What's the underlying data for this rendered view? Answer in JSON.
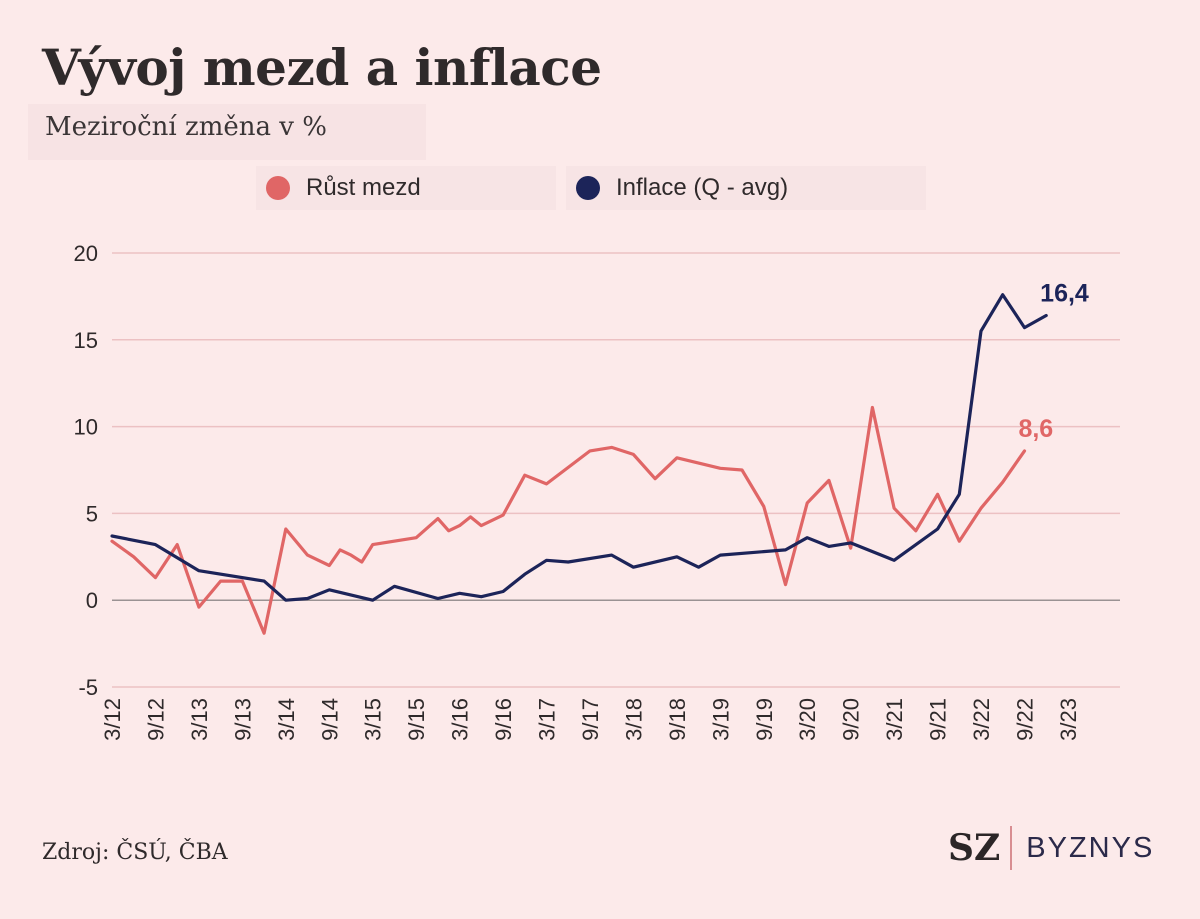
{
  "header": {
    "title": "Vývoj mezd a inflace",
    "subtitle": "Meziroční změna v %"
  },
  "footer": {
    "source": "Zdroj: ČSÚ, ČBA",
    "brand_mark": "SZ",
    "brand_name": "BYZNYS"
  },
  "chart_data": {
    "type": "line",
    "title": "Vývoj mezd a inflace",
    "subtitle": "Meziroční změna v %",
    "xlabel": "",
    "ylabel": "",
    "ylim": [
      -5,
      20
    ],
    "yticks": [
      "20",
      "15",
      "10",
      "5",
      "0",
      "-5"
    ],
    "ytick_values": [
      20,
      15,
      10,
      5,
      0,
      -5
    ],
    "grid": true,
    "legend_placement": "top",
    "x_tick_labels": [
      "3/12",
      "9/12",
      "3/13",
      "9/13",
      "3/14",
      "9/14",
      "3/15",
      "9/15",
      "3/16",
      "9/16",
      "3/17",
      "9/17",
      "3/18",
      "9/18",
      "3/19",
      "9/19",
      "3/20",
      "9/20",
      "3/21",
      "9/21",
      "3/22",
      "9/22",
      "3/23"
    ],
    "series": [
      {
        "name": "Růst mezd",
        "color": "#e06666",
        "end_label": "8,6",
        "points": [
          {
            "x": 0,
            "y": 3.4
          },
          {
            "x": 0.5,
            "y": 2.5
          },
          {
            "x": 1,
            "y": 1.3
          },
          {
            "x": 1.5,
            "y": 3.2
          },
          {
            "x": 2,
            "y": -0.4
          },
          {
            "x": 2.5,
            "y": 1.1
          },
          {
            "x": 3,
            "y": 1.1
          },
          {
            "x": 3.5,
            "y": -1.9
          },
          {
            "x": 4,
            "y": 4.1
          },
          {
            "x": 4.5,
            "y": 2.6
          },
          {
            "x": 5,
            "y": 2.0
          },
          {
            "x": 5.25,
            "y": 2.9
          },
          {
            "x": 5.5,
            "y": 2.6
          },
          {
            "x": 5.75,
            "y": 2.2
          },
          {
            "x": 6,
            "y": 3.2
          },
          {
            "x": 7,
            "y": 3.6
          },
          {
            "x": 7.5,
            "y": 4.7
          },
          {
            "x": 7.75,
            "y": 4.0
          },
          {
            "x": 8,
            "y": 4.3
          },
          {
            "x": 8.25,
            "y": 4.8
          },
          {
            "x": 8.5,
            "y": 4.3
          },
          {
            "x": 9,
            "y": 4.9
          },
          {
            "x": 9.5,
            "y": 7.2
          },
          {
            "x": 10,
            "y": 6.7
          },
          {
            "x": 11,
            "y": 8.6
          },
          {
            "x": 11.5,
            "y": 8.8
          },
          {
            "x": 12,
            "y": 8.4
          },
          {
            "x": 12.5,
            "y": 7.0
          },
          {
            "x": 13,
            "y": 8.2
          },
          {
            "x": 14,
            "y": 7.6
          },
          {
            "x": 14.5,
            "y": 7.5
          },
          {
            "x": 15,
            "y": 5.4
          },
          {
            "x": 15.5,
            "y": 0.9
          },
          {
            "x": 16,
            "y": 5.6
          },
          {
            "x": 16.5,
            "y": 6.9
          },
          {
            "x": 17,
            "y": 3.0
          },
          {
            "x": 17.5,
            "y": 11.1
          },
          {
            "x": 18,
            "y": 5.3
          },
          {
            "x": 18.5,
            "y": 4.0
          },
          {
            "x": 19,
            "y": 6.1
          },
          {
            "x": 19.5,
            "y": 3.4
          },
          {
            "x": 20,
            "y": 5.3
          },
          {
            "x": 20.5,
            "y": 6.8
          },
          {
            "x": 21,
            "y": 8.6
          }
        ]
      },
      {
        "name": "Inflace (Q - avg)",
        "color": "#1c2459",
        "end_label": "16,4",
        "points": [
          {
            "x": 0,
            "y": 3.7
          },
          {
            "x": 1,
            "y": 3.2
          },
          {
            "x": 2,
            "y": 1.7
          },
          {
            "x": 3.5,
            "y": 1.1
          },
          {
            "x": 4,
            "y": 0.0
          },
          {
            "x": 4.5,
            "y": 0.1
          },
          {
            "x": 5,
            "y": 0.6
          },
          {
            "x": 6,
            "y": 0.0
          },
          {
            "x": 6.5,
            "y": 0.8
          },
          {
            "x": 7.5,
            "y": 0.1
          },
          {
            "x": 8,
            "y": 0.4
          },
          {
            "x": 8.5,
            "y": 0.2
          },
          {
            "x": 9,
            "y": 0.5
          },
          {
            "x": 9.5,
            "y": 1.5
          },
          {
            "x": 10,
            "y": 2.3
          },
          {
            "x": 10.5,
            "y": 2.2
          },
          {
            "x": 11.5,
            "y": 2.6
          },
          {
            "x": 12,
            "y": 1.9
          },
          {
            "x": 13,
            "y": 2.5
          },
          {
            "x": 13.5,
            "y": 1.9
          },
          {
            "x": 14,
            "y": 2.6
          },
          {
            "x": 15.5,
            "y": 2.9
          },
          {
            "x": 16,
            "y": 3.6
          },
          {
            "x": 16.5,
            "y": 3.1
          },
          {
            "x": 17,
            "y": 3.3
          },
          {
            "x": 18,
            "y": 2.3
          },
          {
            "x": 19,
            "y": 4.1
          },
          {
            "x": 19.5,
            "y": 6.1
          },
          {
            "x": 20,
            "y": 15.5
          },
          {
            "x": 20.5,
            "y": 17.6
          },
          {
            "x": 21,
            "y": 15.7
          },
          {
            "x": 21.5,
            "y": 16.4
          }
        ]
      }
    ]
  }
}
